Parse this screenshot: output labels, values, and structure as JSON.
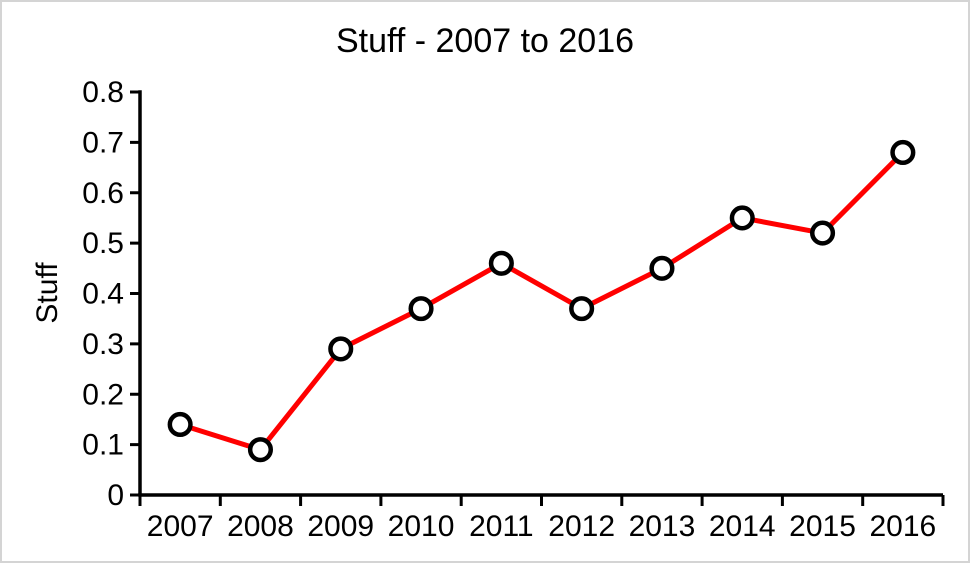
{
  "chart_data": {
    "type": "line",
    "title": "Stuff - 2007 to 2016",
    "xlabel": "",
    "ylabel": "Stuff",
    "categories": [
      "2007",
      "2008",
      "2009",
      "2010",
      "2011",
      "2012",
      "2013",
      "2014",
      "2015",
      "2016"
    ],
    "series": [
      {
        "name": "Stuff",
        "values": [
          0.14,
          0.09,
          0.29,
          0.37,
          0.46,
          0.37,
          0.45,
          0.55,
          0.52,
          0.68
        ]
      }
    ],
    "ylim": [
      0,
      0.8
    ],
    "y_tick_labels": [
      "0",
      "0.1",
      "0.2",
      "0.3",
      "0.4",
      "0.5",
      "0.6",
      "0.7",
      "0.8"
    ],
    "grid": false,
    "legend": false,
    "marker": "circle",
    "colors": {
      "line": "#ff0000",
      "marker_fill": "#ffffff",
      "marker_stroke": "#000000",
      "axis": "#000000",
      "text": "#000000",
      "background": "#ffffff",
      "frame_border": "#d4d4d4"
    }
  }
}
